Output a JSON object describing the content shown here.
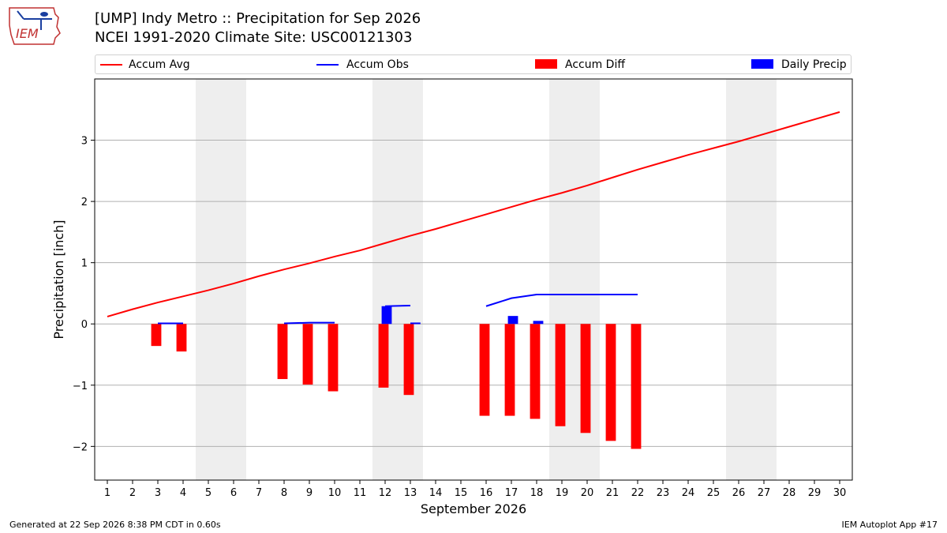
{
  "header": {
    "title_line1": "[UMP] Indy Metro :: Precipitation for Sep 2026",
    "title_line2": "NCEI 1991-2020 Climate Site: USC00121303",
    "logo_text": "IEM"
  },
  "legend": {
    "accum_avg": "Accum Avg",
    "accum_obs": "Accum Obs",
    "accum_diff": "Accum Diff",
    "daily_precip": "Daily Precip"
  },
  "footer": {
    "generated": "Generated at 22 Sep 2026 8:38 PM CDT in 0.60s",
    "app": "IEM Autoplot App #17"
  },
  "colors": {
    "accum_avg": "#ff0000",
    "accum_obs": "#0000ff",
    "accum_diff": "#ff0000",
    "daily_precip": "#0000ff",
    "weekend_shade": "#eeeeee",
    "grid": "#b0b0b0"
  },
  "chart_data": {
    "type": "bar",
    "xlabel": "September 2026",
    "ylabel": "Precipitation [inch]",
    "xlim": [
      0.5,
      30.5
    ],
    "ylim": [
      -2.55,
      4.0
    ],
    "yticks": [
      -2,
      -1,
      0,
      1,
      2,
      3
    ],
    "ytick_labels": [
      "−2",
      "−1",
      "0",
      "1",
      "2",
      "3"
    ],
    "grid": "horizontal",
    "legend_position": "top",
    "days": [
      1,
      2,
      3,
      4,
      5,
      6,
      7,
      8,
      9,
      10,
      11,
      12,
      13,
      14,
      15,
      16,
      17,
      18,
      19,
      20,
      21,
      22,
      23,
      24,
      25,
      26,
      27,
      28,
      29,
      30
    ],
    "weekend_shading": [
      [
        5,
        6
      ],
      [
        12,
        13
      ],
      [
        19,
        20
      ],
      [
        26,
        27
      ]
    ],
    "series": [
      {
        "name": "Accum Avg",
        "type": "line",
        "x": [
          1,
          2,
          3,
          4,
          5,
          6,
          7,
          8,
          9,
          10,
          11,
          12,
          13,
          14,
          15,
          16,
          17,
          18,
          19,
          20,
          21,
          22,
          23,
          24,
          25,
          26,
          27,
          28,
          29,
          30
        ],
        "values": [
          0.12,
          0.24,
          0.35,
          0.45,
          0.55,
          0.66,
          0.78,
          0.89,
          0.99,
          1.1,
          1.2,
          1.32,
          1.44,
          1.55,
          1.67,
          1.79,
          1.91,
          2.03,
          2.14,
          2.26,
          2.39,
          2.52,
          2.64,
          2.76,
          2.87,
          2.98,
          3.1,
          3.22,
          3.34,
          3.46
        ]
      },
      {
        "name": "Accum Obs",
        "type": "line",
        "segments": [
          {
            "x": [
              3,
              4
            ],
            "values": [
              0.01,
              0.01
            ]
          },
          {
            "x": [
              8,
              9,
              10
            ],
            "values": [
              0.01,
              0.02,
              0.02
            ]
          },
          {
            "x": [
              12,
              13
            ],
            "values": [
              0.29,
              0.3
            ]
          },
          {
            "x": [
              13
            ],
            "values": [
              0.01
            ]
          },
          {
            "x": [
              16,
              17,
              18,
              19,
              20,
              21,
              22
            ],
            "values": [
              0.29,
              0.42,
              0.48,
              0.48,
              0.48,
              0.48,
              0.48
            ]
          }
        ]
      },
      {
        "name": "Accum Diff",
        "type": "bar",
        "x": [
          3,
          4,
          8,
          9,
          10,
          12,
          13,
          16,
          17,
          18,
          19,
          20,
          21,
          22
        ],
        "values": [
          -0.36,
          -0.45,
          -0.9,
          -0.99,
          -1.1,
          -1.04,
          -1.16,
          -1.5,
          -1.5,
          -1.55,
          -1.67,
          -1.78,
          -1.91,
          -2.04
        ]
      },
      {
        "name": "Daily Precip",
        "type": "bar",
        "x": [
          12,
          17,
          18
        ],
        "values": [
          0.29,
          0.13,
          0.05
        ]
      }
    ]
  }
}
